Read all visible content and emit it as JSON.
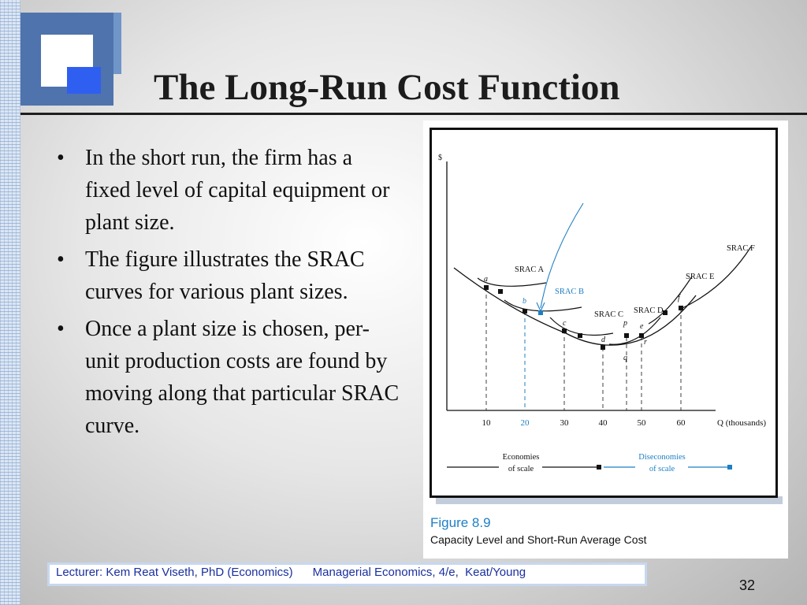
{
  "slide": {
    "title": "The Long-Run Cost Function",
    "bullets": [
      "In the short run, the firm has a fixed level of capital equipment or plant size.",
      "The figure illustrates the SRAC curves for various plant sizes.",
      "Once a plant size is chosen, per-unit production costs are found by moving along that particular SRAC curve."
    ],
    "bullet_symbol": "•",
    "footer_text": "Lecturer: Kem Reat Viseth, PhD (Economics)      Managerial Economics, 4/e,  Keat/Young",
    "page_number": "32"
  },
  "figure": {
    "number": "Figure 8.9",
    "caption": "Capacity Level and Short-Run Average Cost"
  },
  "colors": {
    "accent_blue": "#1e7fc4",
    "footer_text": "#1a2fa0",
    "title": "#1c1c1c"
  },
  "chart_data": {
    "type": "line",
    "ylabel": "$",
    "xlabel": "Q (thousands)",
    "x_ticks": [
      10,
      20,
      30,
      40,
      50,
      60
    ],
    "curves": [
      "SRAC A",
      "SRAC B",
      "SRAC C",
      "SRAC D",
      "SRAC E",
      "SRAC F"
    ],
    "highlighted_curve": "SRAC B",
    "points": [
      {
        "label": "a",
        "x": 10
      },
      {
        "label": "b",
        "x": 20
      },
      {
        "label": "c",
        "x": 30
      },
      {
        "label": "d",
        "x": 40
      },
      {
        "label": "p",
        "x": 47
      },
      {
        "label": "e",
        "x": 50
      },
      {
        "label": "q",
        "x": 47
      },
      {
        "label": "r",
        "x": 50
      },
      {
        "label": "f",
        "x": 60
      }
    ],
    "ranges": [
      {
        "label": "Economies\nof scale",
        "from": 0,
        "to": 40
      },
      {
        "label": "Diseconomies\nof scale",
        "from": 40,
        "to": 80
      }
    ]
  }
}
